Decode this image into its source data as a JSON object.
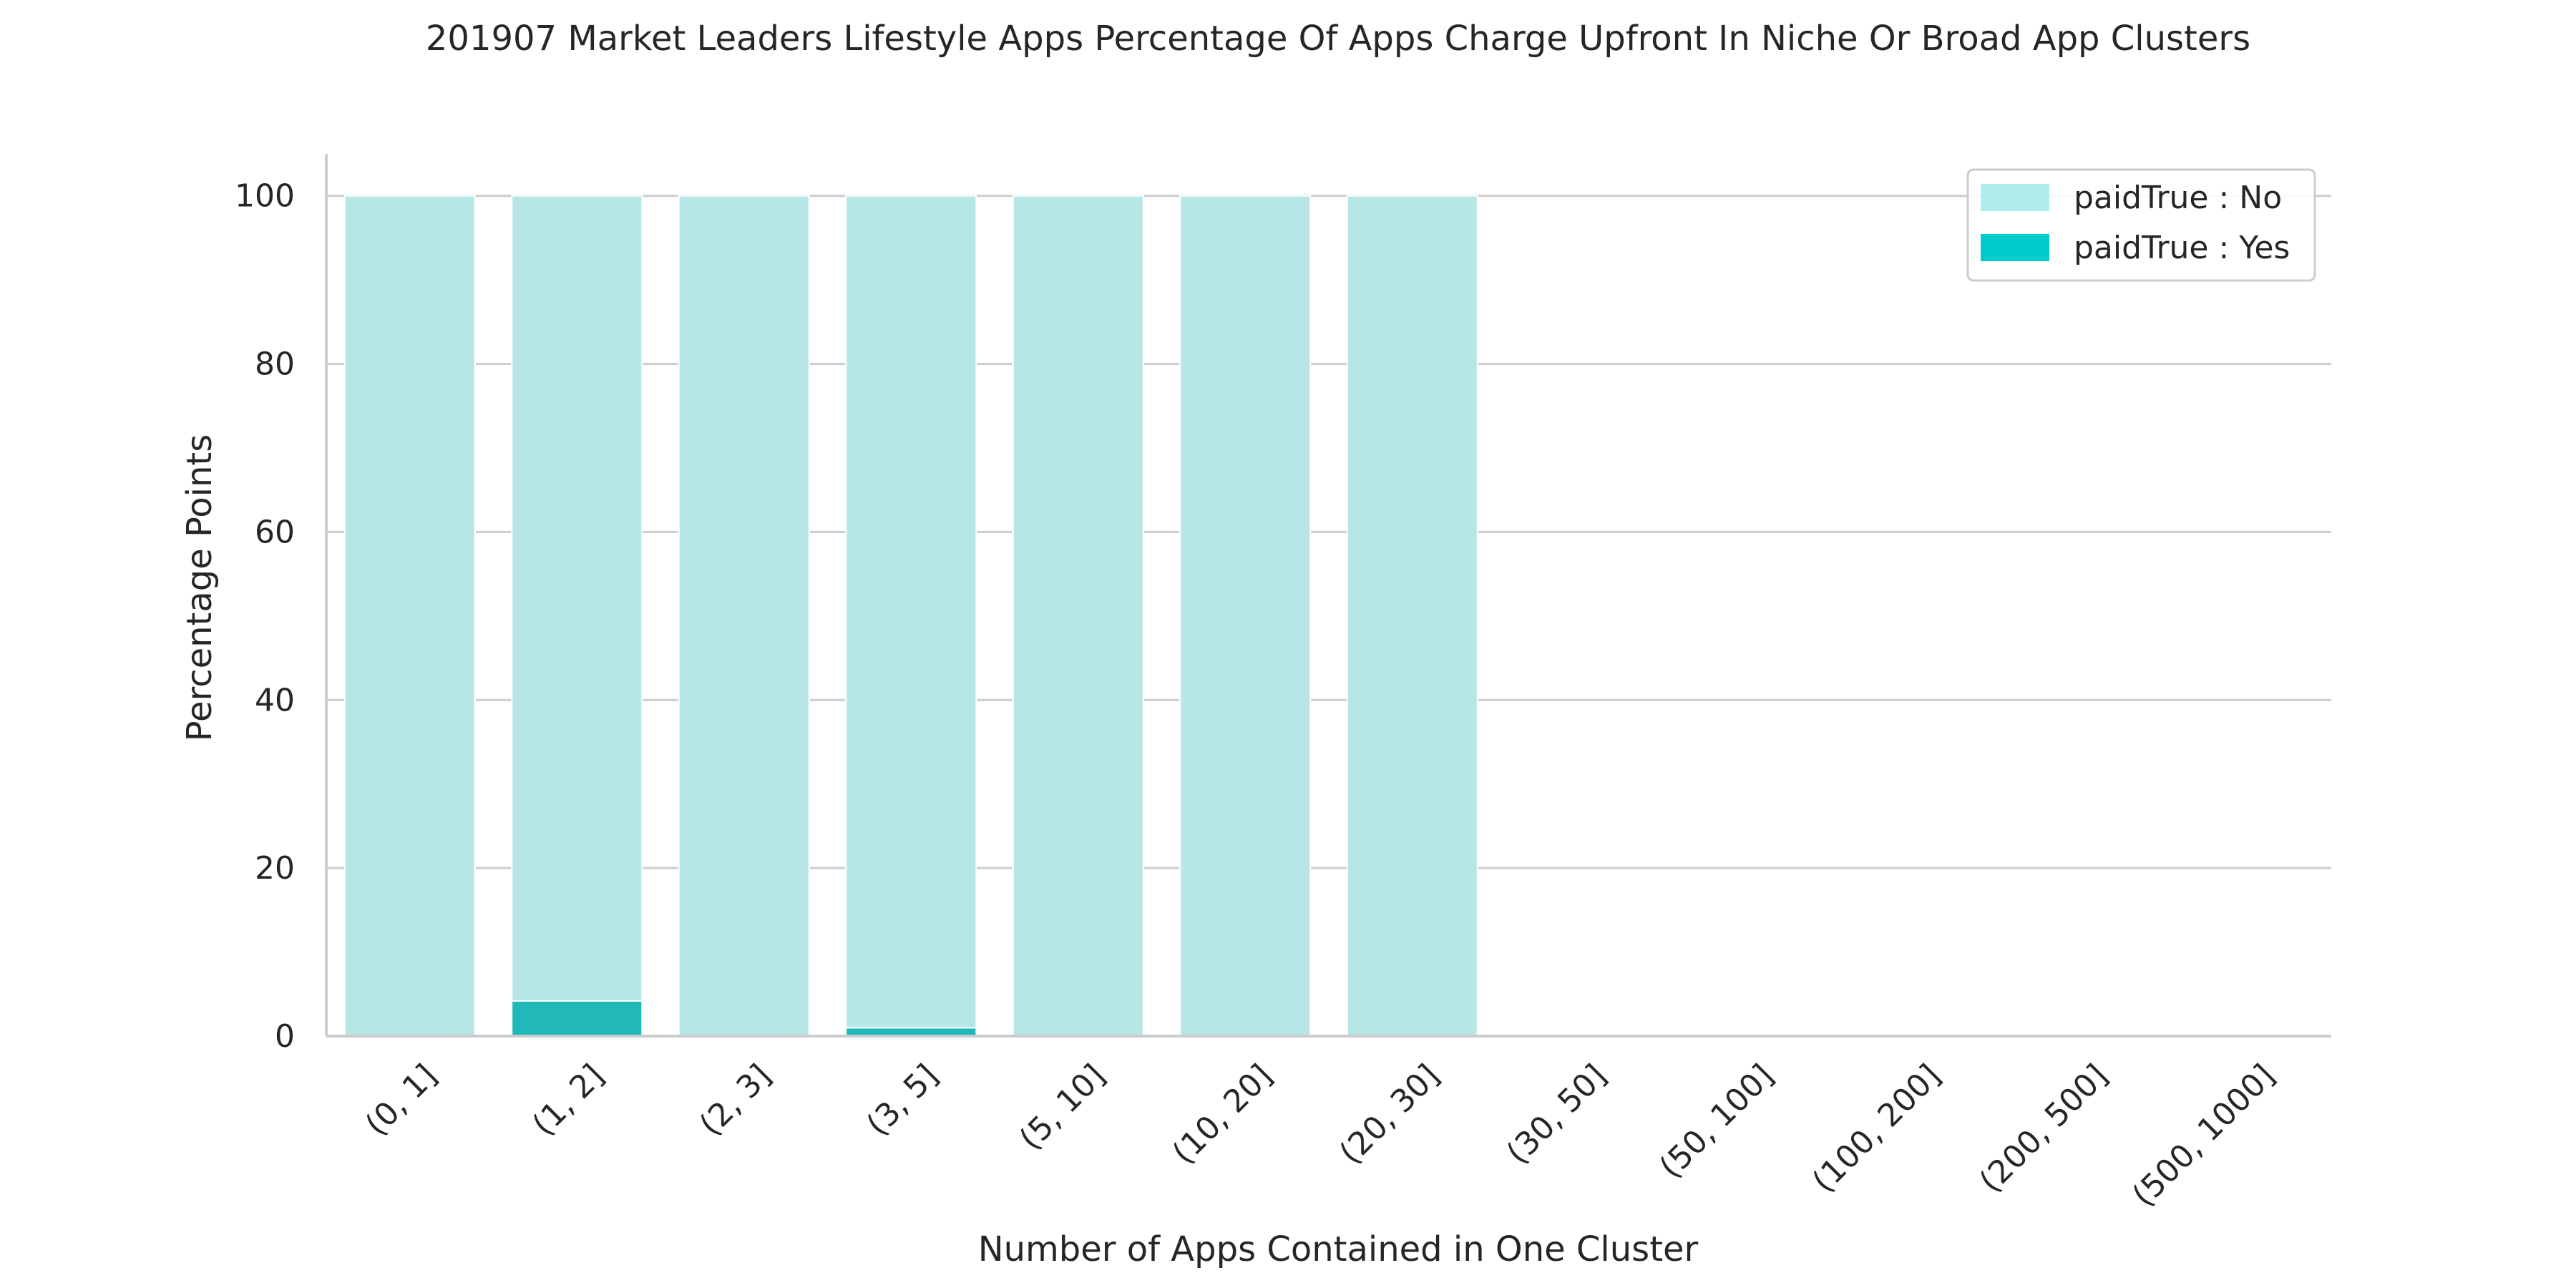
{
  "chart_data": {
    "type": "bar",
    "stacked": true,
    "title": "201907 Market Leaders Lifestyle Apps Percentage Of Apps Charge Upfront In Niche Or Broad App Clusters",
    "xlabel": "Number of Apps Contained in One Cluster",
    "ylabel": "Percentage Points",
    "ylim": [
      0,
      105
    ],
    "yticks": [
      0,
      20,
      40,
      60,
      80,
      100
    ],
    "grid": "horizontal",
    "legend_position": "top-right",
    "categories": [
      "(0, 1]",
      "(1, 2]",
      "(2, 3]",
      "(3, 5]",
      "(5, 10]",
      "(10, 20]",
      "(20, 30]",
      "(30, 50]",
      "(50, 100]",
      "(100, 200]",
      "(200, 500]",
      "(500, 1000]"
    ],
    "series": [
      {
        "name": "paidTrue : Yes",
        "color": "#20b8b8",
        "legend_color": "#00cccc",
        "values": [
          0,
          4.2,
          0,
          1.0,
          0,
          0,
          0,
          0,
          0,
          0,
          0,
          0
        ]
      },
      {
        "name": "paidTrue : No",
        "color": "#b7e6e6",
        "legend_color": "#b0eeee",
        "values": [
          100,
          95.8,
          100,
          99.0,
          100,
          100,
          100,
          0,
          0,
          0,
          0,
          0
        ]
      }
    ],
    "legend_order": [
      "paidTrue : No",
      "paidTrue : Yes"
    ]
  }
}
